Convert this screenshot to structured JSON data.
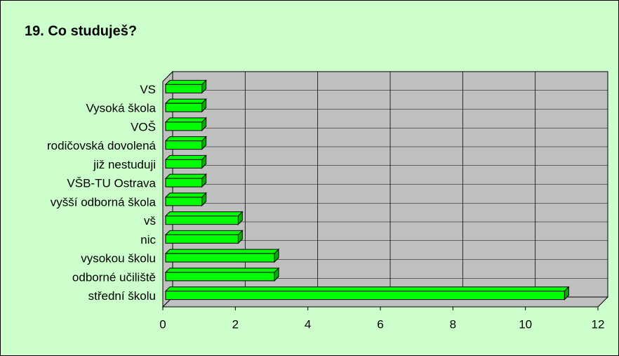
{
  "chart_data": {
    "type": "bar",
    "orientation": "horizontal",
    "three_d": true,
    "title": "19. Co studuješ?",
    "categories": [
      "VS",
      "Vysoká škola",
      "VOŠ",
      "rodičovská dovolená",
      "již nestuduji",
      "VŠB-TU Ostrava",
      "vyšší odborná škola",
      "vš",
      "nic",
      "vysokou školu",
      "odborné učiliště",
      "střední školu"
    ],
    "values": [
      1,
      1,
      1,
      1,
      1,
      1,
      1,
      2,
      2,
      3,
      3,
      11
    ],
    "color": "#00ff00",
    "background": "#ccffcc",
    "wall_color": "#c0c0c0",
    "xlim": [
      0,
      12
    ],
    "xticks": [
      0,
      2,
      4,
      6,
      8,
      10,
      12
    ],
    "grid": true
  }
}
